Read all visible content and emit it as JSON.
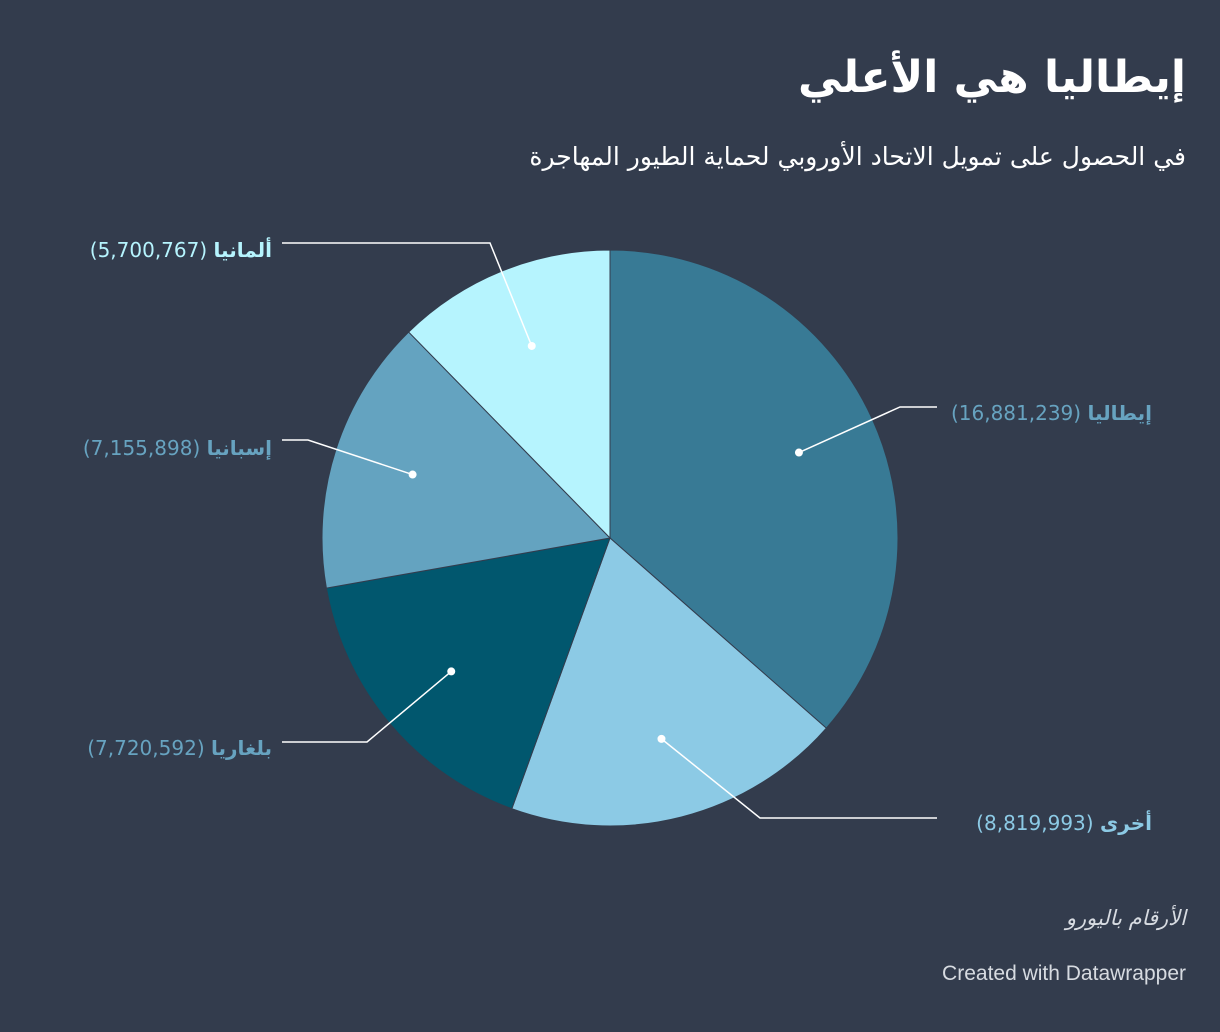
{
  "title": "إيطاليا هي الأعلي",
  "subtitle": "في الحصول على تمويل الاتحاد الأوروبي لحماية الطيور المهاجرة",
  "note": "الأرقام باليورو",
  "credit": "Created with Datawrapper",
  "chart_data": {
    "type": "pie",
    "slices": [
      {
        "label": "إيطاليا",
        "value": 16881239,
        "value_label": "16,881,239",
        "color": "#387a95",
        "label_color": "#67a3c0"
      },
      {
        "label": "أخرى",
        "value": 8819993,
        "value_label": "8,819,993",
        "color": "#8ccae5",
        "label_color": "#8ccae5"
      },
      {
        "label": "بلغاريا",
        "value": 7720592,
        "value_label": "7,720,592",
        "color": "#01576e",
        "label_color": "#67a3c0"
      },
      {
        "label": "إسبانيا",
        "value": 7155898,
        "value_label": "7,155,898",
        "color": "#64a3c0",
        "label_color": "#67a3c0"
      },
      {
        "label": "ألمانيا",
        "value": 5700767,
        "value_label": "5,700,767",
        "color": "#b6f4fe",
        "label_color": "#b6f4fe"
      }
    ]
  }
}
